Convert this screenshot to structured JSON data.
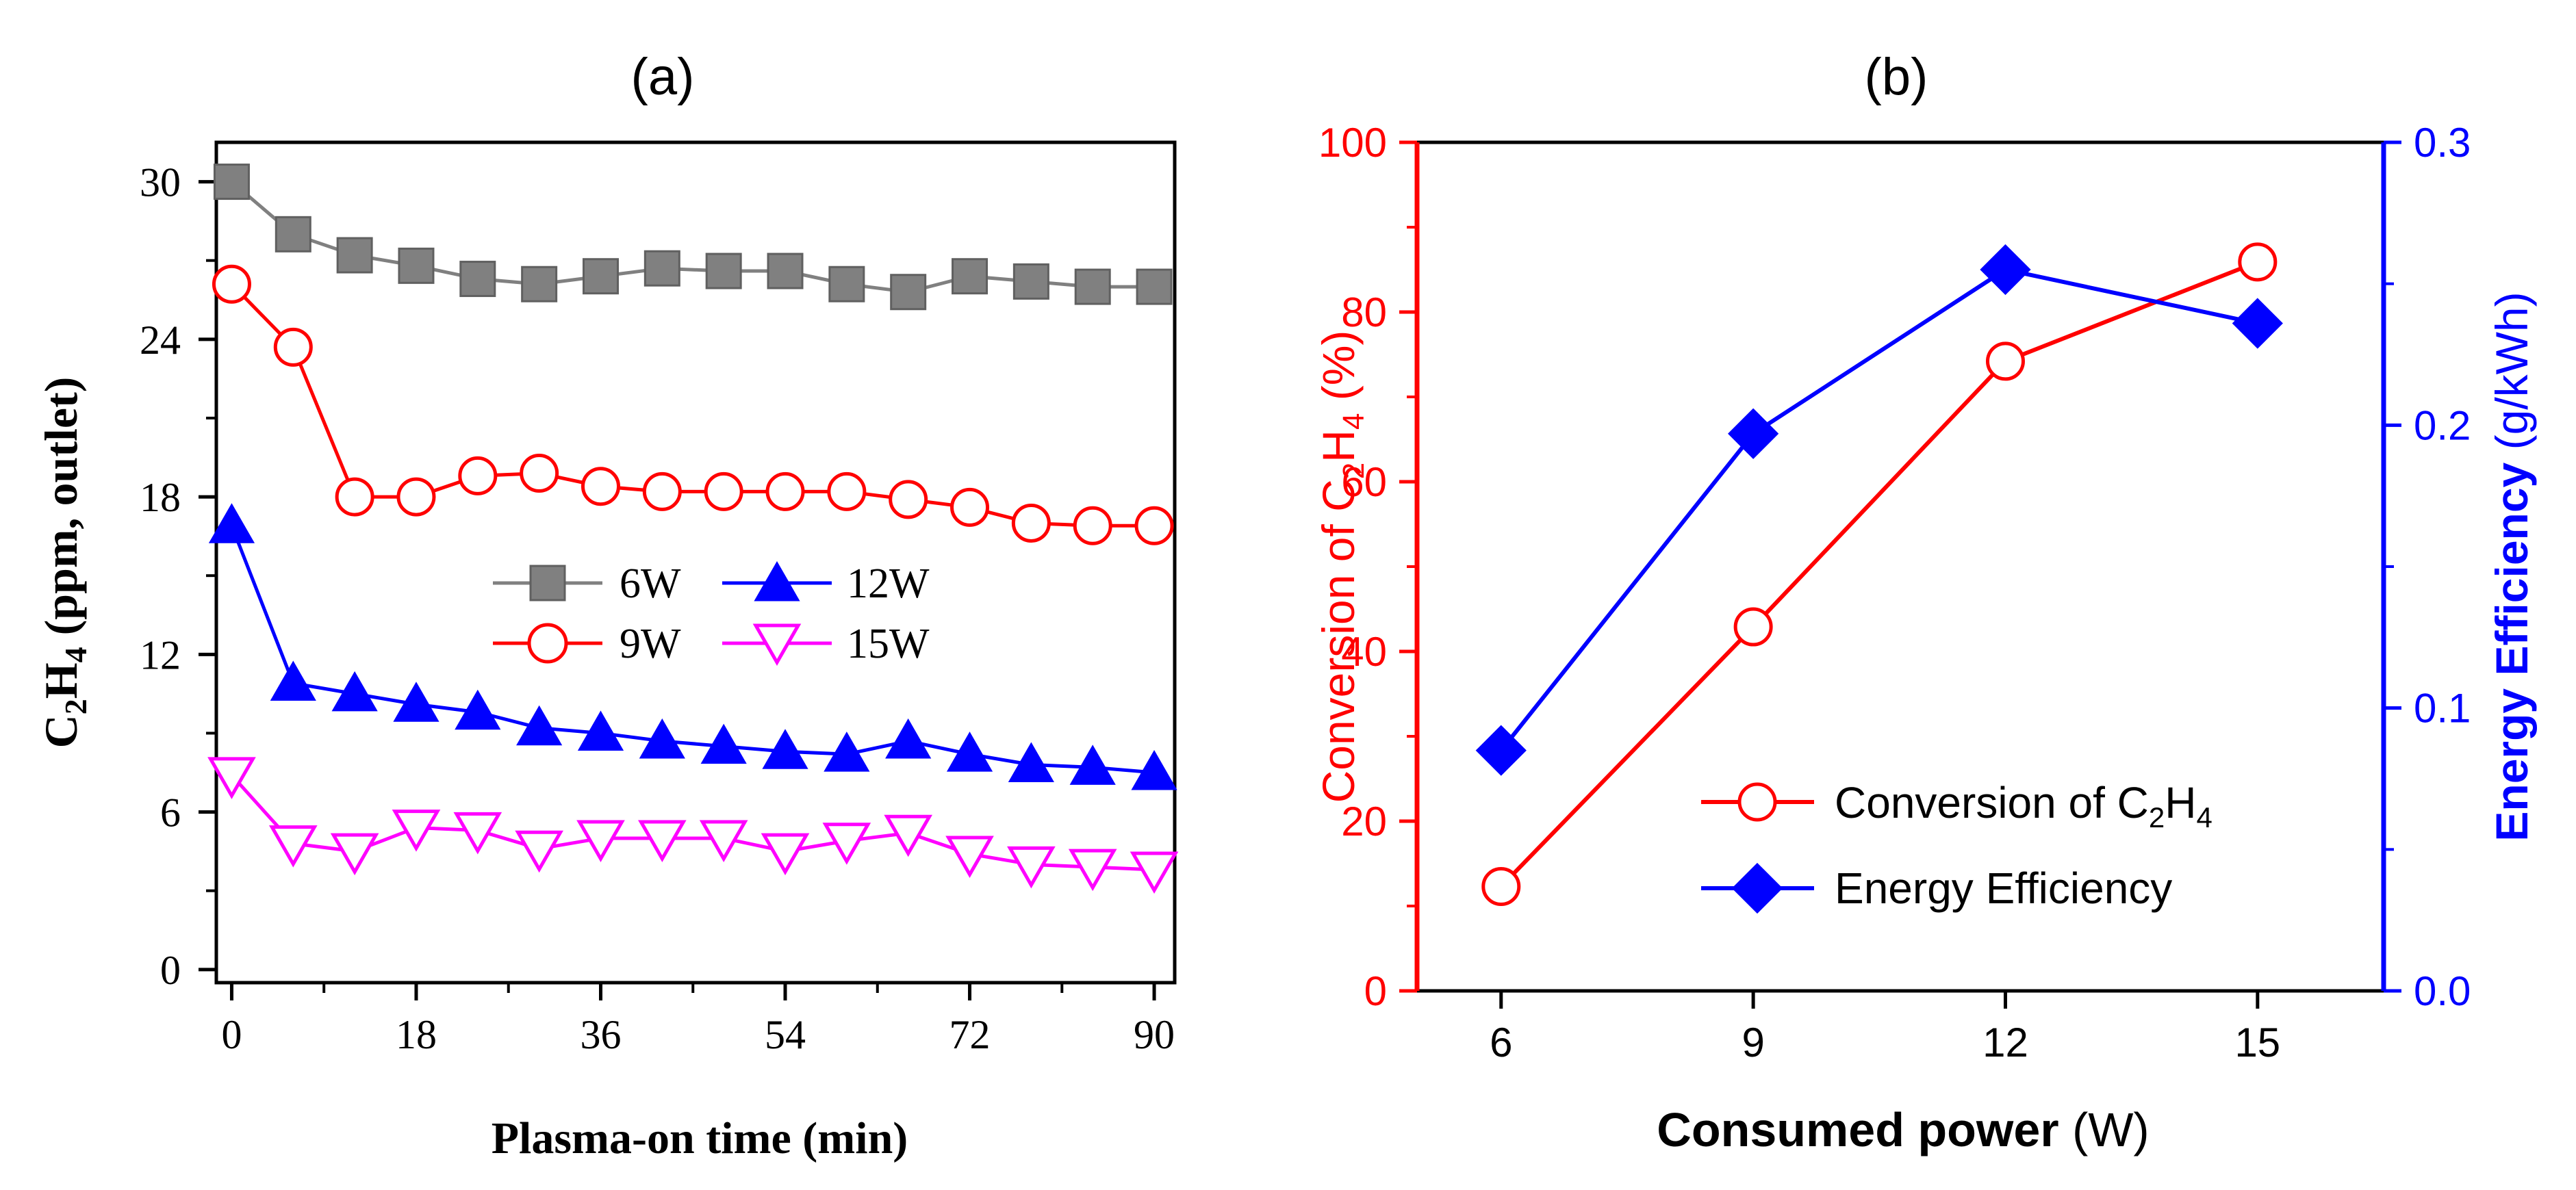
{
  "chart_data": [
    {
      "panel": "(a)",
      "type": "line",
      "title": "(a)",
      "xlabel": "Plasma-on time (min)",
      "ylabel": {
        "base": "C",
        "sub1": "2",
        "mid": "H",
        "sub2": "4",
        "rest": " (ppm, outlet)"
      },
      "xlim": [
        -1.5,
        92
      ],
      "ylim": [
        -0.5,
        31.5
      ],
      "xticks": [
        0,
        18,
        36,
        54,
        72,
        90
      ],
      "xtick_labels": [
        "0",
        "18",
        "36",
        "54",
        "72",
        "90"
      ],
      "yticks": [
        0,
        6,
        12,
        18,
        24,
        30
      ],
      "ytick_labels": [
        "0",
        "6",
        "12",
        "18",
        "24",
        "30"
      ],
      "x": [
        0,
        6,
        12,
        18,
        24,
        30,
        36,
        42,
        48,
        54,
        60,
        66,
        72,
        78,
        84,
        90
      ],
      "series": [
        {
          "name": "6W",
          "label": "6W",
          "color": "#808080",
          "marker": "square",
          "values": [
            30.0,
            28.0,
            27.2,
            26.8,
            26.3,
            26.1,
            26.4,
            26.7,
            26.6,
            26.6,
            26.1,
            25.8,
            26.4,
            26.2,
            26.0,
            26.0
          ]
        },
        {
          "name": "9W",
          "label": "9W",
          "color": "#ff0000",
          "marker": "circle-open",
          "values": [
            26.1,
            23.7,
            18.0,
            18.0,
            18.8,
            18.9,
            18.4,
            18.2,
            18.2,
            18.2,
            18.2,
            17.9,
            17.6,
            17.0,
            16.9,
            16.9
          ]
        },
        {
          "name": "12W",
          "label": "12W",
          "color": "#0000ff",
          "marker": "triangle-up",
          "values": [
            16.9,
            10.9,
            10.5,
            10.1,
            9.8,
            9.2,
            9.0,
            8.7,
            8.5,
            8.3,
            8.2,
            8.7,
            8.2,
            7.8,
            7.7,
            7.5
          ]
        },
        {
          "name": "15W",
          "label": "15W",
          "color": "#ff00ff",
          "marker": "triangle-down-open",
          "values": [
            7.4,
            4.8,
            4.5,
            5.4,
            5.3,
            4.6,
            5.0,
            5.0,
            5.0,
            4.5,
            4.9,
            5.2,
            4.4,
            4.0,
            3.9,
            3.8
          ]
        }
      ],
      "legend": "center-right"
    },
    {
      "panel": "(b)",
      "type": "line",
      "title": "(b)",
      "xlabel": {
        "bold": "Consumed power",
        "rest": " (W)"
      },
      "ylabel_left": {
        "base": "Conversion of C",
        "sub1": "2",
        "mid": "H",
        "sub2": "4",
        "rest": " (%)"
      },
      "ylabel_right": {
        "bold": "Energy Efficiency",
        "rest": " (g/kWh)"
      },
      "xlim": [
        5,
        16.5
      ],
      "ylim_left": [
        0,
        100
      ],
      "ylim_right": [
        0,
        0.3
      ],
      "xticks": [
        6,
        9,
        12,
        15
      ],
      "xtick_labels": [
        "6",
        "9",
        "12",
        "15"
      ],
      "yticks_left": [
        0,
        20,
        40,
        60,
        80,
        100
      ],
      "ytick_labels_left": [
        "0",
        "20",
        "40",
        "60",
        "80",
        "100"
      ],
      "yticks_right": [
        0.0,
        0.1,
        0.2,
        0.3
      ],
      "ytick_labels_right": [
        "0.0",
        "0.1",
        "0.2",
        "0.3"
      ],
      "x": [
        6,
        9,
        12,
        15
      ],
      "series": [
        {
          "name": "Conversion of C2H4",
          "label": {
            "base": "Conversion of C",
            "sub1": "2",
            "mid": "H",
            "sub2": "4"
          },
          "axis": "left",
          "color": "#ff0000",
          "marker": "circle-open",
          "values": [
            12.3,
            42.9,
            74.2,
            85.9
          ]
        },
        {
          "name": "Energy Efficiency",
          "label": "Energy Efficiency",
          "axis": "right",
          "color": "#0000ff",
          "marker": "diamond",
          "values": [
            0.085,
            0.197,
            0.255,
            0.236
          ]
        }
      ],
      "legend": "bottom-right"
    }
  ]
}
